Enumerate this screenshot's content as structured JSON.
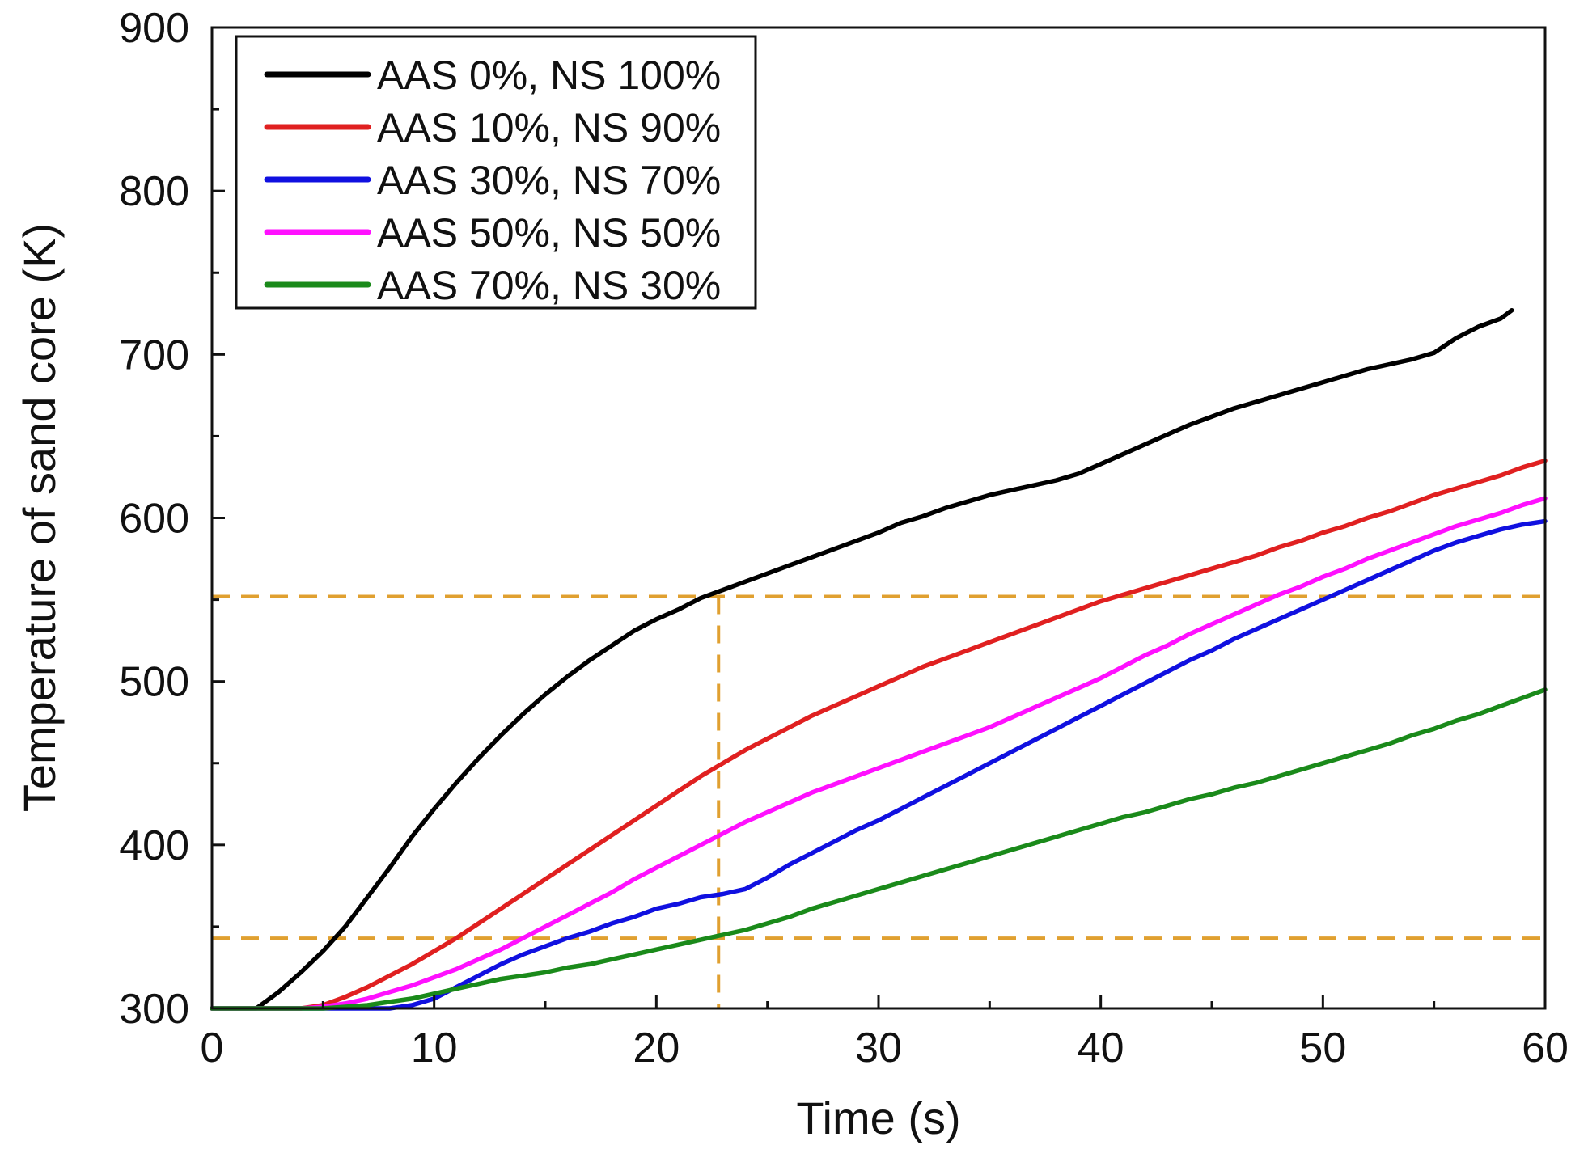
{
  "chart_data": {
    "type": "line",
    "title": "",
    "xlabel": "Time (s)",
    "ylabel": "Temperature of sand core (K)",
    "xlim": [
      0,
      60
    ],
    "ylim": [
      300,
      900
    ],
    "xticks": [
      0,
      10,
      20,
      30,
      40,
      50,
      60
    ],
    "yticks": [
      300,
      400,
      500,
      600,
      700,
      800,
      900
    ],
    "xtick_labels": [
      "0",
      "10",
      "20",
      "30",
      "40",
      "50",
      "60"
    ],
    "ytick_labels": [
      "300",
      "400",
      "500",
      "600",
      "700",
      "800",
      "900"
    ],
    "legend_position": "top-left",
    "grid": false,
    "reference_lines": {
      "horizontal": [
        552,
        343
      ],
      "vertical": [
        22.8
      ],
      "color": "#E0A030"
    },
    "series": [
      {
        "name": "AAS 0%, NS 100%",
        "color": "#000000",
        "points": [
          [
            0,
            300
          ],
          [
            2,
            300
          ],
          [
            3,
            310
          ],
          [
            4,
            322
          ],
          [
            5,
            335
          ],
          [
            6,
            350
          ],
          [
            7,
            368
          ],
          [
            8,
            386
          ],
          [
            9,
            405
          ],
          [
            10,
            422
          ],
          [
            11,
            438
          ],
          [
            12,
            453
          ],
          [
            13,
            467
          ],
          [
            14,
            480
          ],
          [
            15,
            492
          ],
          [
            16,
            503
          ],
          [
            17,
            513
          ],
          [
            18,
            522
          ],
          [
            19,
            531
          ],
          [
            20,
            538
          ],
          [
            21,
            544
          ],
          [
            22,
            551
          ],
          [
            23,
            556
          ],
          [
            24,
            561
          ],
          [
            25,
            566
          ],
          [
            26,
            571
          ],
          [
            27,
            576
          ],
          [
            28,
            581
          ],
          [
            29,
            586
          ],
          [
            30,
            591
          ],
          [
            31,
            597
          ],
          [
            32,
            601
          ],
          [
            33,
            606
          ],
          [
            34,
            610
          ],
          [
            35,
            614
          ],
          [
            36,
            617
          ],
          [
            37,
            620
          ],
          [
            38,
            623
          ],
          [
            39,
            627
          ],
          [
            40,
            633
          ],
          [
            41,
            639
          ],
          [
            42,
            645
          ],
          [
            43,
            651
          ],
          [
            44,
            657
          ],
          [
            45,
            662
          ],
          [
            46,
            667
          ],
          [
            47,
            671
          ],
          [
            48,
            675
          ],
          [
            49,
            679
          ],
          [
            50,
            683
          ],
          [
            51,
            687
          ],
          [
            52,
            691
          ],
          [
            53,
            694
          ],
          [
            54,
            697
          ],
          [
            55,
            701
          ],
          [
            56,
            710
          ],
          [
            57,
            717
          ],
          [
            58,
            722
          ],
          [
            58.5,
            727
          ]
        ]
      },
      {
        "name": "AAS 10%, NS 90%",
        "color": "#E02020",
        "points": [
          [
            0,
            300
          ],
          [
            4,
            300
          ],
          [
            5,
            302
          ],
          [
            6,
            307
          ],
          [
            7,
            313
          ],
          [
            8,
            320
          ],
          [
            9,
            327
          ],
          [
            10,
            335
          ],
          [
            11,
            343
          ],
          [
            12,
            352
          ],
          [
            13,
            361
          ],
          [
            14,
            370
          ],
          [
            15,
            379
          ],
          [
            16,
            388
          ],
          [
            17,
            397
          ],
          [
            18,
            406
          ],
          [
            19,
            415
          ],
          [
            20,
            424
          ],
          [
            21,
            433
          ],
          [
            22,
            442
          ],
          [
            23,
            450
          ],
          [
            24,
            458
          ],
          [
            25,
            465
          ],
          [
            26,
            472
          ],
          [
            27,
            479
          ],
          [
            28,
            485
          ],
          [
            29,
            491
          ],
          [
            30,
            497
          ],
          [
            31,
            503
          ],
          [
            32,
            509
          ],
          [
            33,
            514
          ],
          [
            34,
            519
          ],
          [
            35,
            524
          ],
          [
            36,
            529
          ],
          [
            37,
            534
          ],
          [
            38,
            539
          ],
          [
            39,
            544
          ],
          [
            40,
            549
          ],
          [
            41,
            553
          ],
          [
            42,
            557
          ],
          [
            43,
            561
          ],
          [
            44,
            565
          ],
          [
            45,
            569
          ],
          [
            46,
            573
          ],
          [
            47,
            577
          ],
          [
            48,
            582
          ],
          [
            49,
            586
          ],
          [
            50,
            591
          ],
          [
            51,
            595
          ],
          [
            52,
            600
          ],
          [
            53,
            604
          ],
          [
            54,
            609
          ],
          [
            55,
            614
          ],
          [
            56,
            618
          ],
          [
            57,
            622
          ],
          [
            58,
            626
          ],
          [
            59,
            631
          ],
          [
            60,
            635
          ]
        ]
      },
      {
        "name": "AAS 30%, NS 70%",
        "color": "#1010E0",
        "points": [
          [
            0,
            300
          ],
          [
            8,
            300
          ],
          [
            9,
            302
          ],
          [
            10,
            306
          ],
          [
            11,
            313
          ],
          [
            12,
            320
          ],
          [
            13,
            327
          ],
          [
            14,
            333
          ],
          [
            15,
            338
          ],
          [
            16,
            343
          ],
          [
            17,
            347
          ],
          [
            18,
            352
          ],
          [
            19,
            356
          ],
          [
            20,
            361
          ],
          [
            21,
            364
          ],
          [
            22,
            368
          ],
          [
            23,
            370
          ],
          [
            24,
            373
          ],
          [
            25,
            380
          ],
          [
            26,
            388
          ],
          [
            27,
            395
          ],
          [
            28,
            402
          ],
          [
            29,
            409
          ],
          [
            30,
            415
          ],
          [
            31,
            422
          ],
          [
            32,
            429
          ],
          [
            33,
            436
          ],
          [
            34,
            443
          ],
          [
            35,
            450
          ],
          [
            36,
            457
          ],
          [
            37,
            464
          ],
          [
            38,
            471
          ],
          [
            39,
            478
          ],
          [
            40,
            485
          ],
          [
            41,
            492
          ],
          [
            42,
            499
          ],
          [
            43,
            506
          ],
          [
            44,
            513
          ],
          [
            45,
            519
          ],
          [
            46,
            526
          ],
          [
            47,
            532
          ],
          [
            48,
            538
          ],
          [
            49,
            544
          ],
          [
            50,
            550
          ],
          [
            51,
            556
          ],
          [
            52,
            562
          ],
          [
            53,
            568
          ],
          [
            54,
            574
          ],
          [
            55,
            580
          ],
          [
            56,
            585
          ],
          [
            57,
            589
          ],
          [
            58,
            593
          ],
          [
            59,
            596
          ],
          [
            60,
            598
          ]
        ]
      },
      {
        "name": "AAS 50%, NS 50%",
        "color": "#FF10FF",
        "points": [
          [
            0,
            300
          ],
          [
            4,
            300
          ],
          [
            5,
            301
          ],
          [
            6,
            303
          ],
          [
            7,
            306
          ],
          [
            8,
            310
          ],
          [
            9,
            314
          ],
          [
            10,
            319
          ],
          [
            11,
            324
          ],
          [
            12,
            330
          ],
          [
            13,
            336
          ],
          [
            14,
            343
          ],
          [
            15,
            350
          ],
          [
            16,
            357
          ],
          [
            17,
            364
          ],
          [
            18,
            371
          ],
          [
            19,
            379
          ],
          [
            20,
            386
          ],
          [
            21,
            393
          ],
          [
            22,
            400
          ],
          [
            23,
            407
          ],
          [
            24,
            414
          ],
          [
            25,
            420
          ],
          [
            26,
            426
          ],
          [
            27,
            432
          ],
          [
            28,
            437
          ],
          [
            29,
            442
          ],
          [
            30,
            447
          ],
          [
            31,
            452
          ],
          [
            32,
            457
          ],
          [
            33,
            462
          ],
          [
            34,
            467
          ],
          [
            35,
            472
          ],
          [
            36,
            478
          ],
          [
            37,
            484
          ],
          [
            38,
            490
          ],
          [
            39,
            496
          ],
          [
            40,
            502
          ],
          [
            41,
            509
          ],
          [
            42,
            516
          ],
          [
            43,
            522
          ],
          [
            44,
            529
          ],
          [
            45,
            535
          ],
          [
            46,
            541
          ],
          [
            47,
            547
          ],
          [
            48,
            553
          ],
          [
            49,
            558
          ],
          [
            50,
            564
          ],
          [
            51,
            569
          ],
          [
            52,
            575
          ],
          [
            53,
            580
          ],
          [
            54,
            585
          ],
          [
            55,
            590
          ],
          [
            56,
            595
          ],
          [
            57,
            599
          ],
          [
            58,
            603
          ],
          [
            59,
            608
          ],
          [
            60,
            612
          ]
        ]
      },
      {
        "name": "AAS 70%, NS 30%",
        "color": "#1A8A1A",
        "points": [
          [
            0,
            300
          ],
          [
            5,
            300
          ],
          [
            6,
            301
          ],
          [
            7,
            302
          ],
          [
            8,
            304
          ],
          [
            9,
            306
          ],
          [
            10,
            309
          ],
          [
            11,
            312
          ],
          [
            12,
            315
          ],
          [
            13,
            318
          ],
          [
            14,
            320
          ],
          [
            15,
            322
          ],
          [
            16,
            325
          ],
          [
            17,
            327
          ],
          [
            18,
            330
          ],
          [
            19,
            333
          ],
          [
            20,
            336
          ],
          [
            21,
            339
          ],
          [
            22,
            342
          ],
          [
            23,
            345
          ],
          [
            24,
            348
          ],
          [
            25,
            352
          ],
          [
            26,
            356
          ],
          [
            27,
            361
          ],
          [
            28,
            365
          ],
          [
            29,
            369
          ],
          [
            30,
            373
          ],
          [
            31,
            377
          ],
          [
            32,
            381
          ],
          [
            33,
            385
          ],
          [
            34,
            389
          ],
          [
            35,
            393
          ],
          [
            36,
            397
          ],
          [
            37,
            401
          ],
          [
            38,
            405
          ],
          [
            39,
            409
          ],
          [
            40,
            413
          ],
          [
            41,
            417
          ],
          [
            42,
            420
          ],
          [
            43,
            424
          ],
          [
            44,
            428
          ],
          [
            45,
            431
          ],
          [
            46,
            435
          ],
          [
            47,
            438
          ],
          [
            48,
            442
          ],
          [
            49,
            446
          ],
          [
            50,
            450
          ],
          [
            51,
            454
          ],
          [
            52,
            458
          ],
          [
            53,
            462
          ],
          [
            54,
            467
          ],
          [
            55,
            471
          ],
          [
            56,
            476
          ],
          [
            57,
            480
          ],
          [
            58,
            485
          ],
          [
            59,
            490
          ],
          [
            60,
            495
          ]
        ]
      }
    ]
  }
}
